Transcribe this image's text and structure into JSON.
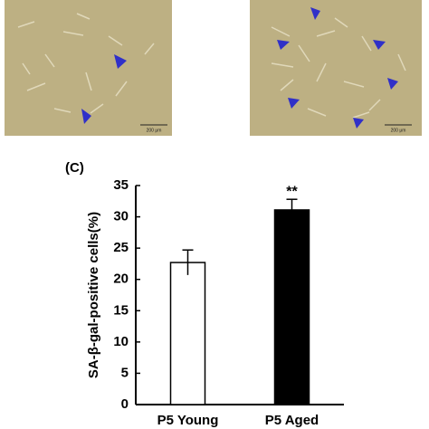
{
  "images": [
    {
      "scale_label": "200 μm"
    },
    {
      "scale_label": "200 μm"
    }
  ],
  "chart_data": {
    "type": "bar",
    "panel_label": "(C)",
    "ylabel": "SA-β-gal-positive cells(%)",
    "categories": [
      "P5 Young",
      "P5 Aged"
    ],
    "values": [
      22.7,
      31.1
    ],
    "errors": [
      2.0,
      1.7
    ],
    "colors": [
      "#ffffff",
      "#000000"
    ],
    "annotations": [
      {
        "text": "**",
        "category": "P5 Aged"
      }
    ],
    "ylim": [
      0,
      35
    ],
    "yticks": [
      0,
      5,
      10,
      15,
      20,
      25,
      30,
      35
    ],
    "grid": false
  }
}
